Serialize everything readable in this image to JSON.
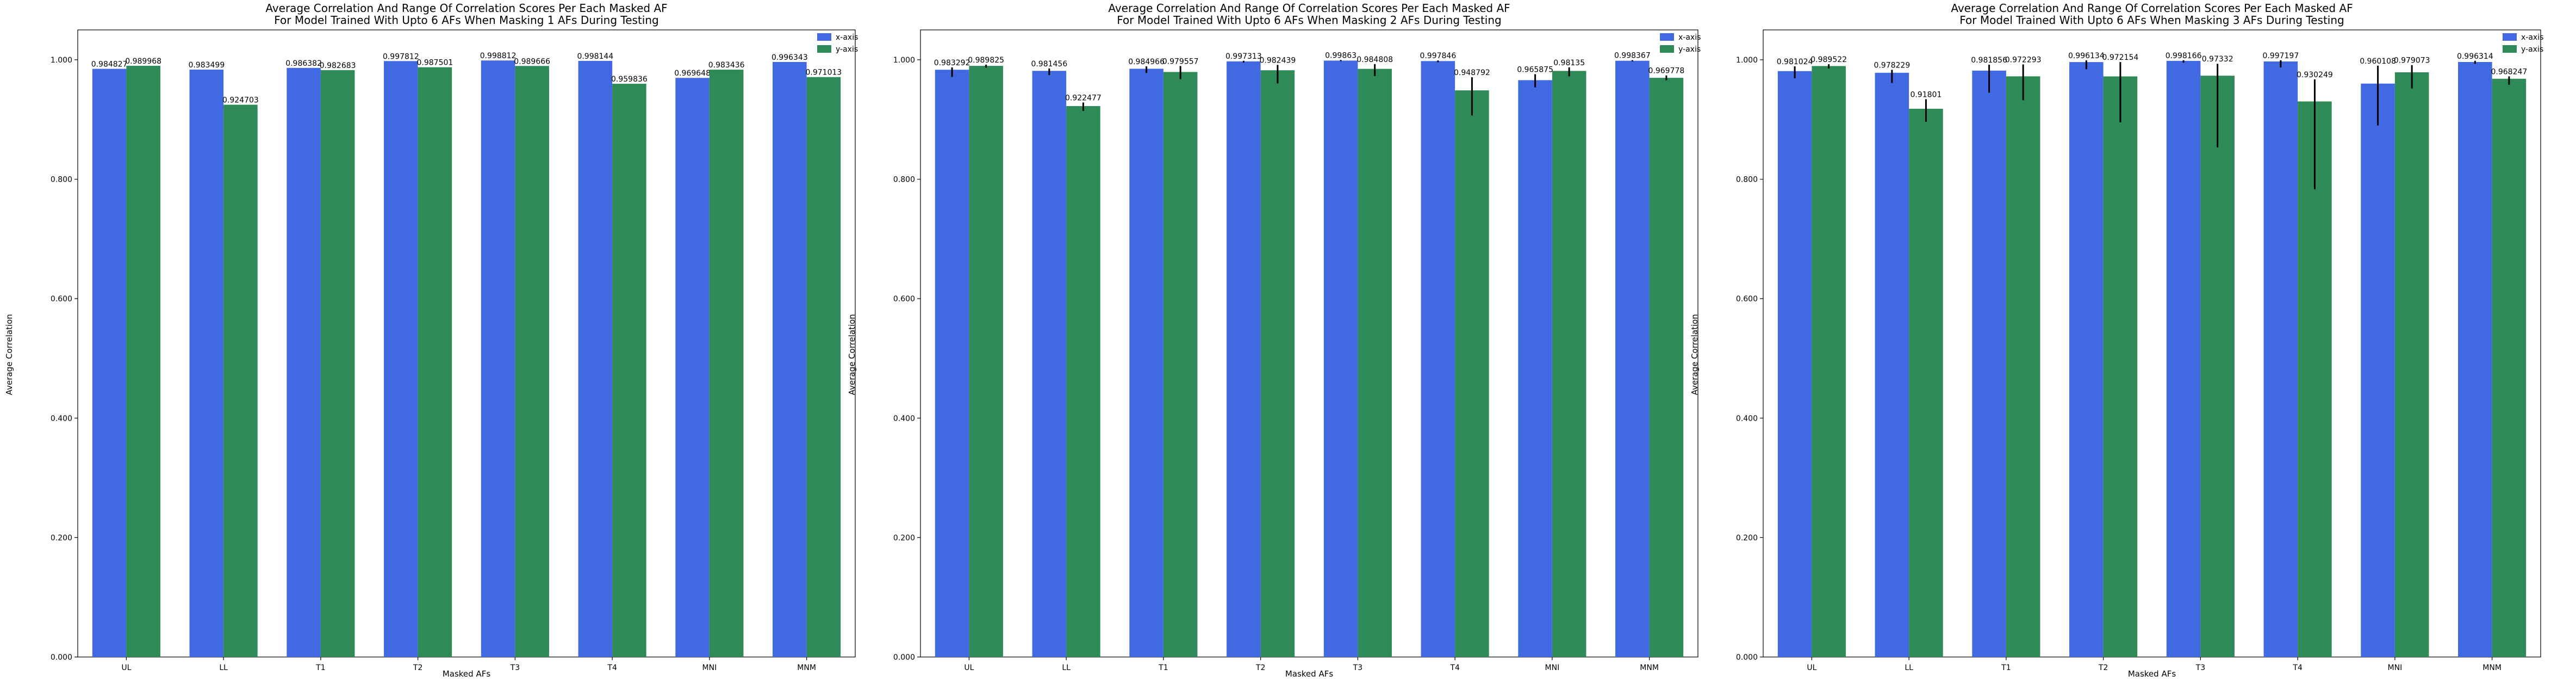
{
  "figure": {
    "panels": [
      {
        "title_line1": "Average Correlation And Range Of Correlation Scores Per Each Masked AF",
        "title_line2": "For Model Trained With Upto 6 AFs When Masking 1 AFs During Testing",
        "xlabel": "Masked AFs",
        "ylabel": "Average Correlation"
      },
      {
        "title_line1": "Average Correlation And Range Of Correlation Scores Per Each Masked AF",
        "title_line2": "For Model Trained With Upto 6 AFs When Masking 2 AFs During Testing",
        "xlabel": "Masked AFs",
        "ylabel": "Average Correlation"
      },
      {
        "title_line1": "Average Correlation And Range Of Correlation Scores Per Each Masked AF",
        "title_line2": "For Model Trained With Upto 6 AFs When Masking 3 AFs During Testing",
        "xlabel": "Masked AFs",
        "ylabel": "Average Correlation"
      }
    ]
  },
  "colors": {
    "x_axis": "#4169e1",
    "y_axis": "#2e8b57",
    "errorbar": "#000000"
  },
  "chart_data": [
    {
      "type": "bar",
      "title": "Average Correlation And Range Of Correlation Scores Per Each Masked AF\nFor Model Trained With Upto 6 AFs When Masking 1 AFs During Testing",
      "xlabel": "Masked AFs",
      "ylabel": "Average Correlation",
      "categories": [
        "UL",
        "LL",
        "T1",
        "T2",
        "T3",
        "T4",
        "MNI",
        "MNM"
      ],
      "series": [
        {
          "name": "x-axis",
          "values": [
            0.984827,
            0.983499,
            0.986382,
            0.997812,
            0.998812,
            0.998144,
            0.969648,
            0.996343
          ],
          "error_low": [
            0,
            0,
            0,
            0,
            0,
            0,
            0,
            0
          ],
          "error_high": [
            0,
            0,
            0,
            0,
            0,
            0,
            0,
            0
          ]
        },
        {
          "name": "y-axis",
          "values": [
            0.989968,
            0.924703,
            0.982683,
            0.987501,
            0.989666,
            0.959836,
            0.983436,
            0.971013
          ],
          "error_low": [
            0,
            0,
            0,
            0,
            0,
            0,
            0,
            0
          ],
          "error_high": [
            0,
            0,
            0,
            0,
            0,
            0,
            0,
            0
          ]
        }
      ],
      "value_labels": {
        "x-axis": [
          "0.984827",
          "0.983499",
          "0.986382",
          "0.997812",
          "0.998812",
          "0.998144",
          "0.969648",
          "0.996343"
        ],
        "y-axis": [
          "0.989968",
          "0.924703",
          "0.982683",
          "0.987501",
          "0.989666",
          "0.959836",
          "0.983436",
          "0.971013"
        ]
      },
      "ylim": [
        0,
        1.05
      ],
      "yticks": [
        "0.000",
        "0.200",
        "0.400",
        "0.600",
        "0.800",
        "1.000"
      ],
      "ytick_values": [
        0,
        0.2,
        0.4,
        0.6,
        0.8,
        1.0
      ],
      "legend": "top-right",
      "grid": false
    },
    {
      "type": "bar",
      "title": "Average Correlation And Range Of Correlation Scores Per Each Masked AF\nFor Model Trained With Upto 6 AFs When Masking 2 AFs During Testing",
      "xlabel": "Masked AFs",
      "ylabel": "Average Correlation",
      "categories": [
        "UL",
        "LL",
        "T1",
        "T2",
        "T3",
        "T4",
        "MNI",
        "MNM"
      ],
      "series": [
        {
          "name": "x-axis",
          "values": [
            0.983292,
            0.981456,
            0.984966,
            0.997313,
            0.99863,
            0.997846,
            0.965875,
            0.998367
          ],
          "error_low": [
            0.012,
            0.007,
            0.007,
            0.002,
            0.001,
            0.002,
            0.012,
            0.001
          ],
          "error_high": [
            0.004,
            0.004,
            0.004,
            0.001,
            0.001,
            0.001,
            0.01,
            0.001
          ]
        },
        {
          "name": "y-axis",
          "values": [
            0.989825,
            0.922477,
            0.979557,
            0.982439,
            0.984808,
            0.948792,
            0.98135,
            0.969778
          ],
          "error_low": [
            0.003,
            0.008,
            0.012,
            0.022,
            0.012,
            0.042,
            0.009,
            0.004
          ],
          "error_high": [
            0.002,
            0.006,
            0.01,
            0.009,
            0.008,
            0.022,
            0.006,
            0.004
          ]
        }
      ],
      "value_labels": {
        "x-axis": [
          "0.983292",
          "0.981456",
          "0.984966",
          "0.997313",
          "0.99863",
          "0.997846",
          "0.965875",
          "0.998367"
        ],
        "y-axis": [
          "0.989825",
          "0.922477",
          "0.979557",
          "0.982439",
          "0.984808",
          "0.948792",
          "0.98135",
          "0.969778"
        ]
      },
      "ylim": [
        0,
        1.05
      ],
      "yticks": [
        "0.000",
        "0.200",
        "0.400",
        "0.600",
        "0.800",
        "1.000"
      ],
      "ytick_values": [
        0,
        0.2,
        0.4,
        0.6,
        0.8,
        1.0
      ],
      "legend": "top-right",
      "grid": false
    },
    {
      "type": "bar",
      "title": "Average Correlation And Range Of Correlation Scores Per Each Masked AF\nFor Model Trained With Upto 6 AFs When Masking 3 AFs During Testing",
      "xlabel": "Masked AFs",
      "ylabel": "Average Correlation",
      "categories": [
        "UL",
        "LL",
        "T1",
        "T2",
        "T3",
        "T4",
        "MNI",
        "MNM"
      ],
      "series": [
        {
          "name": "x-axis",
          "values": [
            0.981024,
            0.978229,
            0.981856,
            0.996134,
            0.998166,
            0.997197,
            0.960108,
            0.996314
          ],
          "error_low": [
            0.012,
            0.017,
            0.037,
            0.012,
            0.003,
            0.01,
            0.07,
            0.003
          ],
          "error_high": [
            0.008,
            0.005,
            0.01,
            0.003,
            0.001,
            0.002,
            0.03,
            0.002
          ]
        },
        {
          "name": "y-axis",
          "values": [
            0.989522,
            0.91801,
            0.972293,
            0.972154,
            0.97332,
            0.930249,
            0.979073,
            0.968247
          ],
          "error_low": [
            0.004,
            0.022,
            0.04,
            0.077,
            0.12,
            0.147,
            0.027,
            0.01
          ],
          "error_high": [
            0.003,
            0.016,
            0.02,
            0.024,
            0.02,
            0.037,
            0.012,
            0.004
          ]
        }
      ],
      "value_labels": {
        "x-axis": [
          "0.981024",
          "0.978229",
          "0.981856",
          "0.996134",
          "0.998166",
          "0.997197",
          "0.960108",
          "0.996314"
        ],
        "y-axis": [
          "0.989522",
          "0.91801",
          "0.972293",
          "0.972154",
          "0.97332",
          "0.930249",
          "0.979073",
          "0.968247"
        ]
      },
      "ylim": [
        0,
        1.05
      ],
      "yticks": [
        "0.000",
        "0.200",
        "0.400",
        "0.600",
        "0.800",
        "1.000"
      ],
      "ytick_values": [
        0,
        0.2,
        0.4,
        0.6,
        0.8,
        1.0
      ],
      "legend": "top-right",
      "grid": false
    }
  ]
}
